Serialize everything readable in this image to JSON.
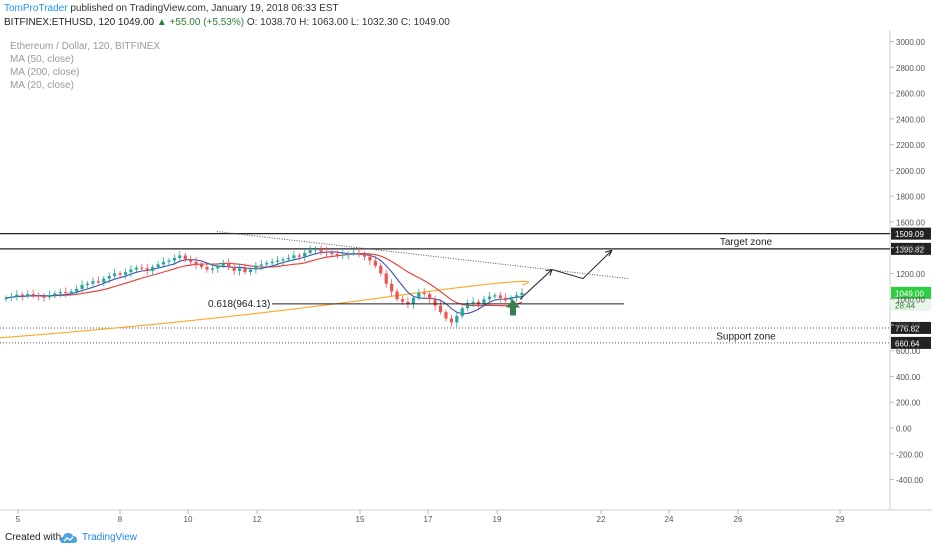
{
  "header": {
    "publisher": "TomProTrader",
    "published_text": "published on TradingView.com, January 19, 2018 06:33 EST",
    "symbol": "BITFINEX:ETHUSD, 120",
    "last": "1049.00",
    "change": "+55.00 (+5.53%)",
    "open": "O: 1038.70",
    "high": "H: 1063.00",
    "low": "L: 1032.30",
    "close": "C: 1049.00"
  },
  "legend": {
    "title": "Ethereum / Dollar, 120, BITFINEX",
    "ma50": "MA (50, close)",
    "ma200": "MA (200, close)",
    "ma20": "MA (20, close)"
  },
  "footer": {
    "created_with": "Created with",
    "brand": "TradingView"
  },
  "colors": {
    "up": "#26a69a",
    "down": "#ef5350",
    "ma50": "#e53935",
    "ma200": "#ffa726",
    "ma20": "#3f51b5",
    "price_label": "#2ecc40",
    "arrow": "#3a7d4f"
  },
  "chart_data": {
    "type": "candlestick",
    "y_axis_ticks": [
      "3000.00",
      "2800.00",
      "2600.00",
      "2400.00",
      "2200.00",
      "2000.00",
      "1800.00",
      "1600.00",
      "1400.00",
      "1200.00",
      "1000.00",
      "800.00",
      "600.00",
      "400.00",
      "200.00",
      "0.00",
      "-200.00",
      "-400.00"
    ],
    "x_axis_ticks": [
      "5",
      "8",
      "10",
      "12",
      "15",
      "17",
      "19",
      "22",
      "24",
      "26",
      "29"
    ],
    "ylim": [
      -560,
      3080
    ],
    "levels": [
      {
        "value": 1509.09,
        "label": "1509.09",
        "style": "solid"
      },
      {
        "value": 1390.82,
        "label": "1390.82",
        "style": "solid"
      },
      {
        "value": 776.82,
        "label": "776.82",
        "style": "dotted"
      },
      {
        "value": 660.64,
        "label": "660.64",
        "style": "dotted"
      }
    ],
    "zones": [
      {
        "name": "Target zone",
        "from": 1390.82,
        "to": 1509.09
      },
      {
        "name": "Support zone",
        "from": 660.64,
        "to": 776.82
      }
    ],
    "fib": {
      "label": "0.618(964.13)",
      "value": 964.13
    },
    "price_label": "1049.00",
    "countdown_label": "28:44",
    "close_prices": [
      1010,
      1020,
      1035,
      1025,
      1040,
      1030,
      1020,
      1015,
      1030,
      1045,
      1055,
      1050,
      1060,
      1080,
      1110,
      1120,
      1140,
      1130,
      1160,
      1180,
      1200,
      1190,
      1210,
      1230,
      1245,
      1240,
      1220,
      1250,
      1270,
      1290,
      1300,
      1320,
      1340,
      1310,
      1290,
      1270,
      1250,
      1230,
      1240,
      1260,
      1280,
      1250,
      1220,
      1240,
      1210,
      1230,
      1260,
      1270,
      1280,
      1290,
      1300,
      1310,
      1320,
      1340,
      1330,
      1360,
      1380,
      1390,
      1370,
      1360,
      1350,
      1340,
      1345,
      1355,
      1360,
      1350,
      1330,
      1300,
      1260,
      1200,
      1120,
      1060,
      1000,
      980,
      960,
      1010,
      1050,
      1040,
      1000,
      950,
      900,
      850,
      820,
      870,
      930,
      970,
      980,
      960,
      1000,
      1020,
      1030,
      1010,
      990,
      1010,
      1030,
      1049
    ],
    "annotations": [
      "trendline",
      "projection-arrow",
      "green-up-arrow"
    ]
  }
}
